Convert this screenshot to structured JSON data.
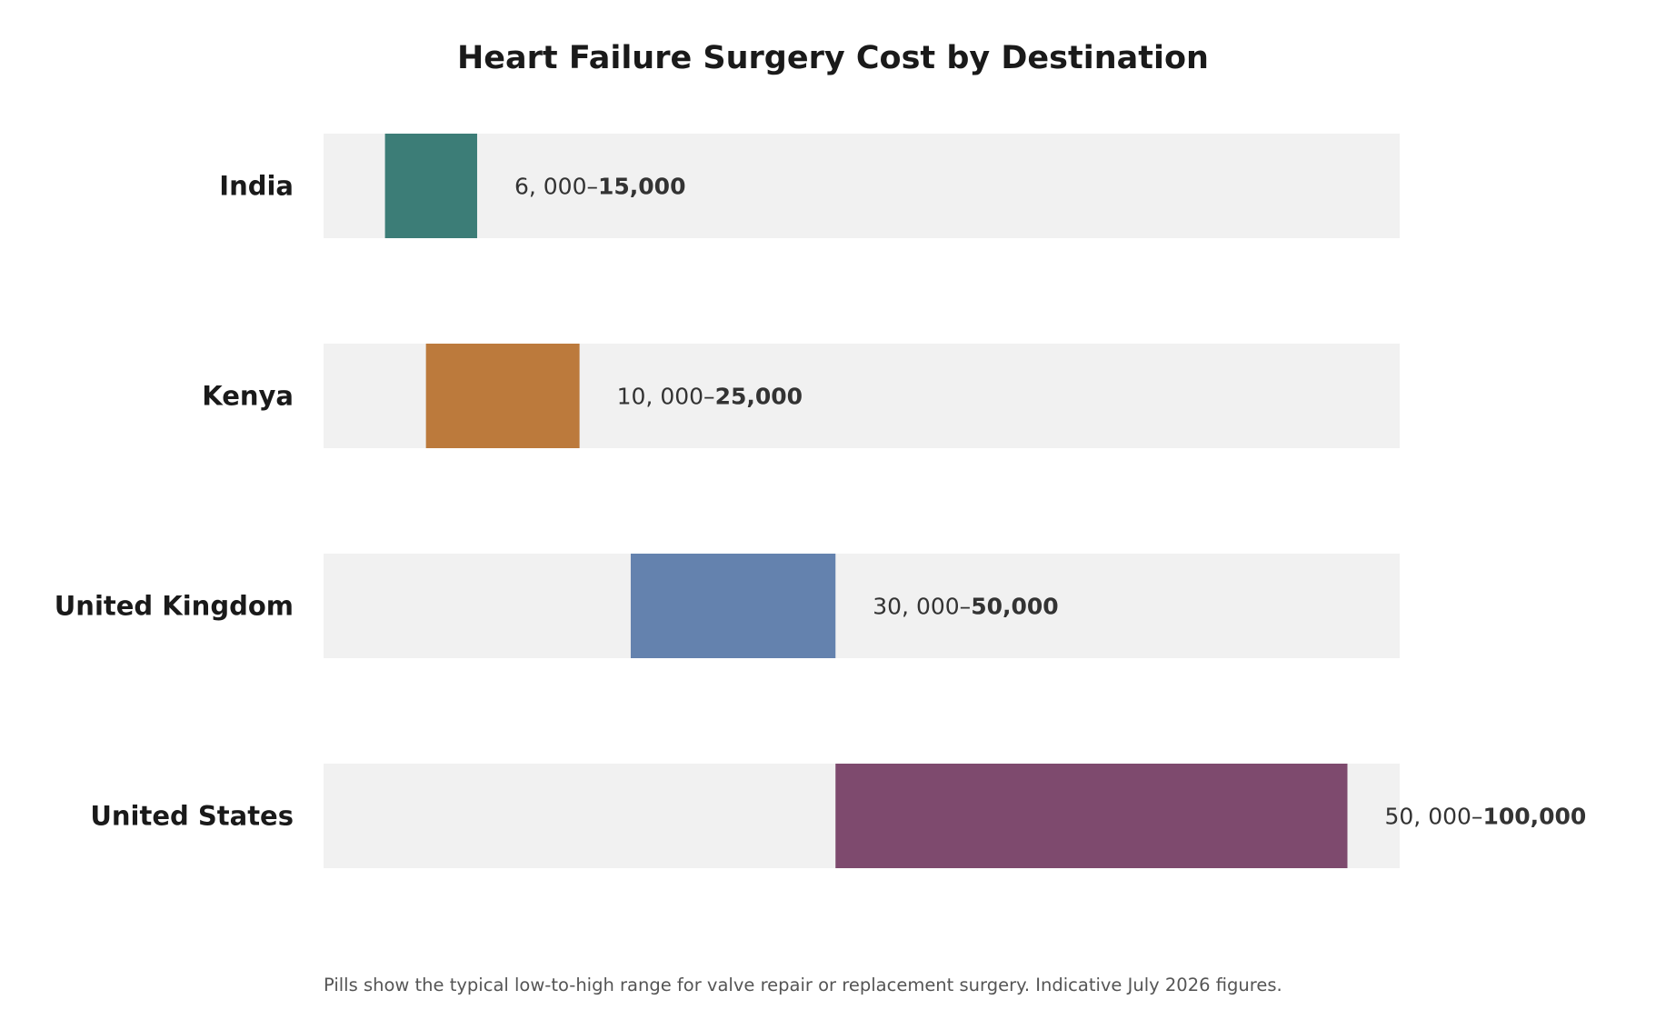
{
  "chart_data": {
    "type": "bar",
    "subtype": "floating-range",
    "title": "Heart Failure Surgery Cost by Destination",
    "xlabel": "",
    "ylabel": "",
    "xlim": [
      0,
      105000
    ],
    "grid": false,
    "legend": "none",
    "categories": [
      "India",
      "Kenya",
      "United Kingdom",
      "United States"
    ],
    "ranges": [
      {
        "category": "India",
        "low": 6000,
        "high": 15000,
        "label_low": "6, 000–",
        "label_high": "15,000",
        "color": "#3c7d77"
      },
      {
        "category": "Kenya",
        "low": 10000,
        "high": 25000,
        "label_low": "10, 000–",
        "label_high": "25,000",
        "color": "#bc7a3c"
      },
      {
        "category": "United Kingdom",
        "low": 30000,
        "high": 50000,
        "label_low": "30, 000–",
        "label_high": "50,000",
        "color": "#6482ae"
      },
      {
        "category": "United States",
        "low": 50000,
        "high": 100000,
        "label_low": "50, 000–",
        "label_high": "100,000",
        "color": "#7e4a6e"
      }
    ],
    "track_color": "#f1f1f1",
    "footnote": "Pills show the typical low-to-high range for valve repair or replacement surgery. Indicative July 2026 figures."
  }
}
